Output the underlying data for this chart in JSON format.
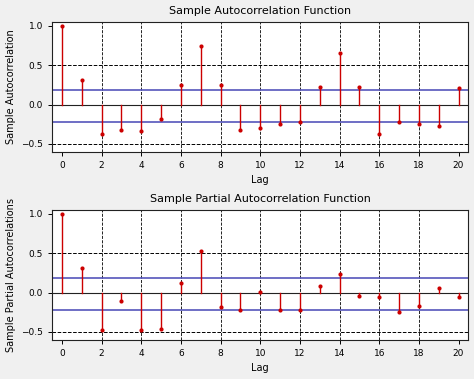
{
  "acf_lags": [
    0,
    1,
    2,
    3,
    4,
    5,
    6,
    7,
    8,
    9,
    10,
    11,
    12,
    13,
    14,
    15,
    16,
    17,
    18,
    19,
    20
  ],
  "acf_values": [
    1.0,
    0.31,
    -0.37,
    -0.32,
    -0.33,
    -0.18,
    0.25,
    0.75,
    0.25,
    -0.32,
    -0.3,
    -0.25,
    -0.22,
    0.22,
    0.65,
    0.22,
    -0.38,
    -0.22,
    -0.25,
    -0.27,
    0.21
  ],
  "pacf_lags": [
    0,
    1,
    2,
    3,
    4,
    5,
    6,
    7,
    8,
    9,
    10,
    11,
    12,
    13,
    14,
    15,
    16,
    17,
    18,
    19,
    20
  ],
  "pacf_values": [
    1.0,
    0.31,
    -0.48,
    -0.1,
    -0.47,
    -0.46,
    0.12,
    0.53,
    -0.18,
    -0.22,
    0.01,
    -0.22,
    -0.22,
    0.08,
    0.24,
    -0.04,
    -0.05,
    -0.24,
    -0.17,
    0.06,
    -0.06
  ],
  "conf_upper": 0.18,
  "conf_lower": -0.22,
  "title_acf": "Sample Autocorrelation Function",
  "title_pacf": "Sample Partial Autocorrelation Function",
  "xlabel": "Lag",
  "ylabel_acf": "Sample Autocorrelation",
  "ylabel_pacf": "Sample Partial Autocorrelations",
  "stem_color": "#cc0000",
  "marker_color": "#cc0000",
  "conf_band_color": "#5555bb",
  "background_color": "#f0f0f0",
  "axes_bg_color": "#ffffff",
  "xlim": [
    -0.5,
    20.5
  ],
  "ylim": [
    -0.6,
    1.05
  ],
  "xticks": [
    0,
    2,
    4,
    6,
    8,
    10,
    12,
    14,
    16,
    18,
    20
  ],
  "dashed_lines_x": [
    2,
    4,
    6,
    8,
    10,
    12,
    14,
    16,
    18
  ],
  "dashed_hlines": [
    0.5,
    -0.5
  ],
  "zero_line_color": "#222222",
  "spine_color": "#222222",
  "title_fontsize": 8.0,
  "label_fontsize": 7.0,
  "tick_fontsize": 6.5
}
